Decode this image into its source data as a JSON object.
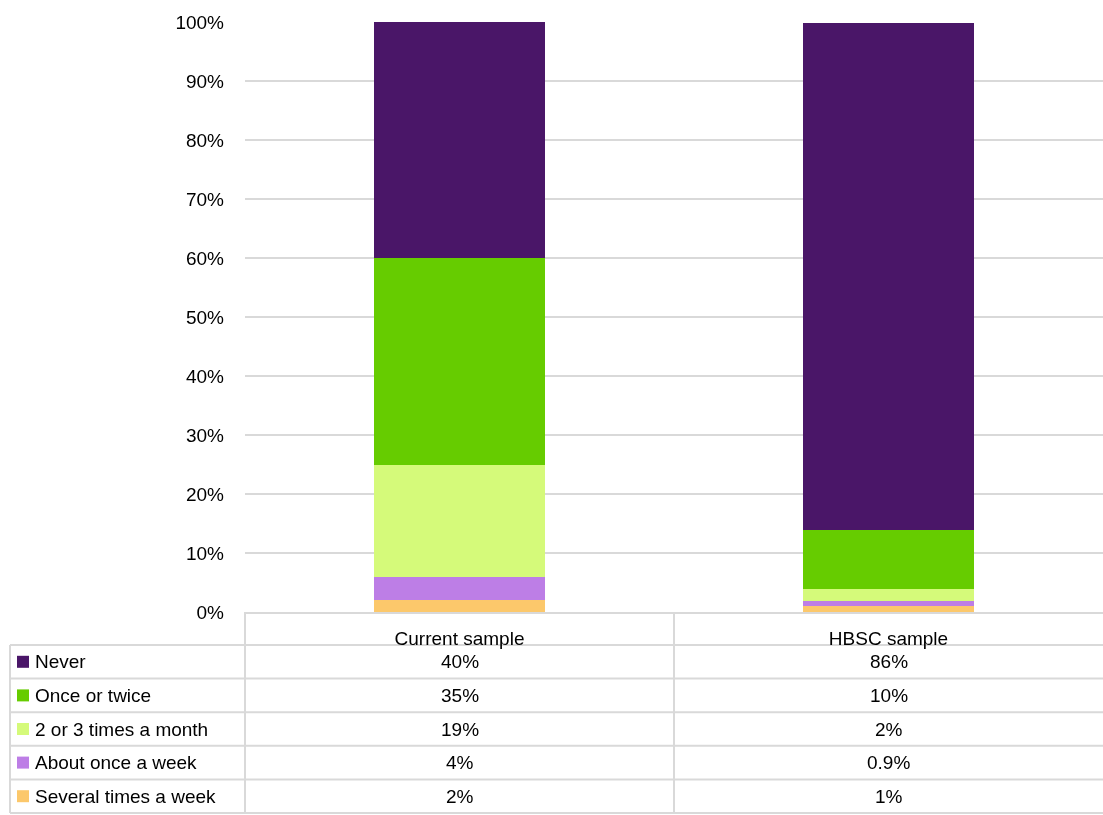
{
  "chart_data": {
    "type": "bar",
    "stacked": true,
    "categories": [
      "Current sample",
      "HBSC sample"
    ],
    "series": [
      {
        "name": "Several times a week",
        "color": "#fcc86b",
        "values": [
          2,
          1
        ],
        "value_labels": [
          "2%",
          "1%"
        ]
      },
      {
        "name": "About once a week",
        "color": "#bd7ee6",
        "values": [
          4,
          0.9
        ],
        "value_labels": [
          "4%",
          "0.9%"
        ]
      },
      {
        "name": "2 or 3 times a month",
        "color": "#d5fa7a",
        "values": [
          19,
          2
        ],
        "value_labels": [
          "19%",
          "2%"
        ]
      },
      {
        "name": "Once or twice",
        "color": "#66cc00",
        "values": [
          35,
          10
        ],
        "value_labels": [
          "35%",
          "10%"
        ]
      },
      {
        "name": "Never",
        "color": "#4a1668",
        "values": [
          40,
          86
        ],
        "value_labels": [
          "40%",
          "86%"
        ]
      }
    ],
    "ylim": [
      0,
      100
    ],
    "yticks": [
      {
        "value": 0,
        "label": "0%"
      },
      {
        "value": 10,
        "label": "10%"
      },
      {
        "value": 20,
        "label": "20%"
      },
      {
        "value": 30,
        "label": "30%"
      },
      {
        "value": 40,
        "label": "40%"
      },
      {
        "value": 50,
        "label": "50%"
      },
      {
        "value": 60,
        "label": "60%"
      },
      {
        "value": 70,
        "label": "70%"
      },
      {
        "value": 80,
        "label": "80%"
      },
      {
        "value": 90,
        "label": "90%"
      },
      {
        "value": 100,
        "label": "100%"
      }
    ],
    "grid": "y",
    "legend": "bottom"
  }
}
